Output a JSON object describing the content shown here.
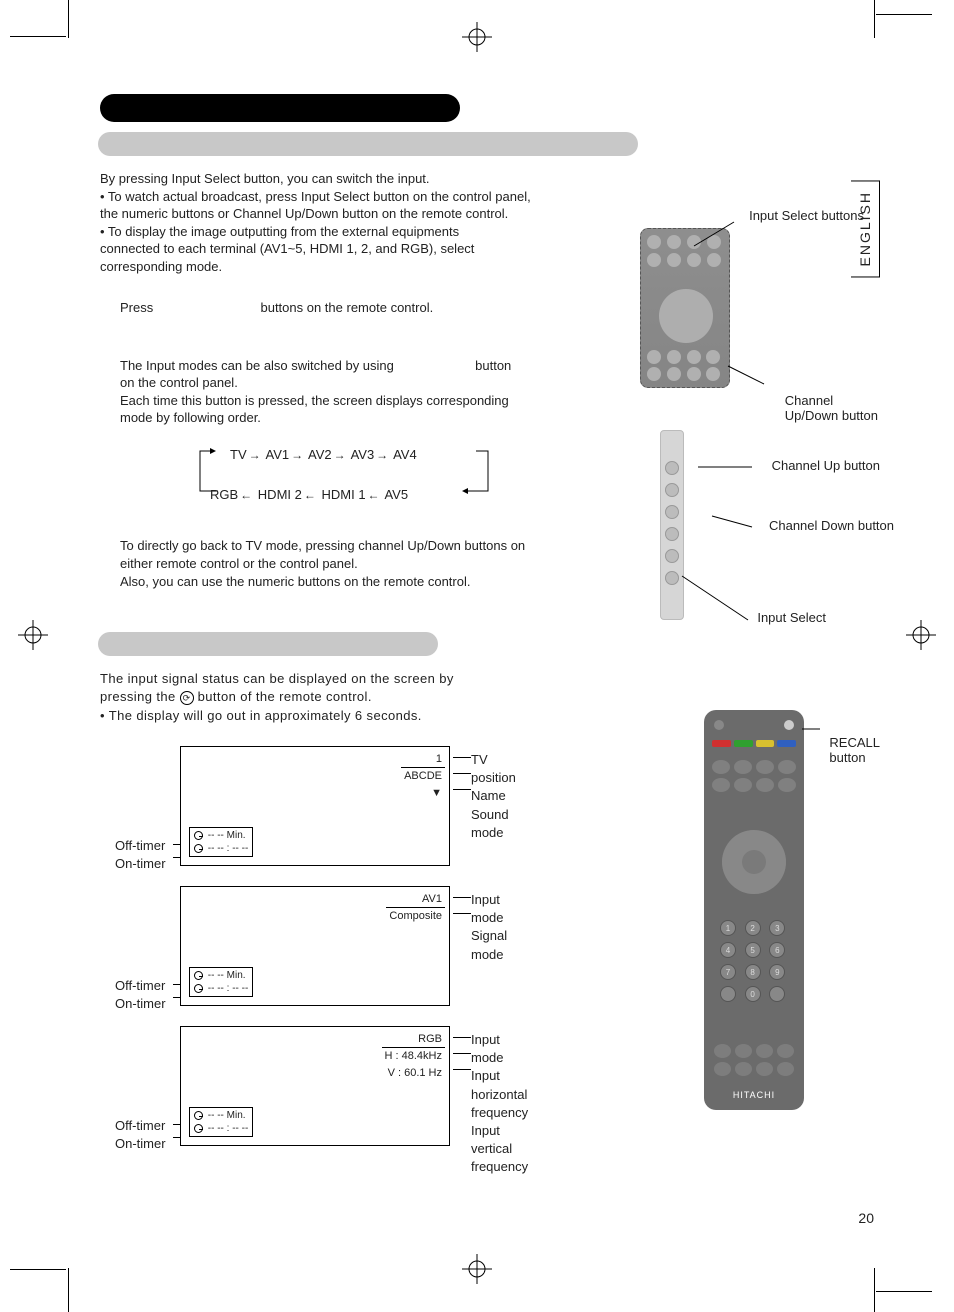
{
  "lang_tab": "ENGLISH",
  "page_number": "20",
  "intro": {
    "line1": "By pressing Input Select button, you can switch the input.",
    "bullet1a": "• To watch actual broadcast, press Input Select button on the control panel,",
    "bullet1b": "  the numeric buttons or Channel Up/Down button on the remote control.",
    "bullet2a": "• To display the image outputting from the external equipments",
    "bullet2b": "  connected to each terminal (AV1~5, HDMI 1, 2, and RGB), select",
    "bullet2c": "  corresponding mode."
  },
  "step1": {
    "press": "Press",
    "tail": "buttons on the remote control."
  },
  "step2": {
    "l1a": "The Input modes can be also switched by using",
    "l1b": "button",
    "l2": "on the control panel.",
    "l3": "Each time this button is pressed, the screen displays corresponding",
    "l4": "mode by following order."
  },
  "cycle": {
    "top": [
      "TV",
      "AV1",
      "AV2",
      "AV3",
      "AV4"
    ],
    "bottom": [
      "RGB",
      "HDMI 2",
      "HDMI 1",
      "AV5"
    ]
  },
  "note": {
    "l1": "To directly go back to TV mode, pressing channel Up/Down buttons on",
    "l2": "either remote control or the control panel.",
    "l3": "Also, you can use the numeric buttons on the remote control."
  },
  "section2": {
    "l1": "The input signal status can be displayed on the screen by",
    "l2a": "pressing the",
    "l2b": "button of the remote control.",
    "b1": "• The display will go out in approximately 6 seconds."
  },
  "displays": [
    {
      "tr": [
        "1",
        "ABCDE",
        "▼"
      ],
      "labels_r": [
        "TV position",
        "Name",
        "Sound mode"
      ],
      "timers": [
        "-- -- Min.",
        "-- -- : -- --"
      ]
    },
    {
      "tr": [
        "AV1",
        "Composite"
      ],
      "labels_r": [
        "Input mode",
        "Signal mode"
      ],
      "timers": [
        "-- -- Min.",
        "-- -- : -- --"
      ]
    },
    {
      "tr": [
        "RGB",
        "H :   48.4kHz",
        "V :   60.1  Hz"
      ],
      "labels_r": [
        "Input mode",
        "Input horizontal frequency",
        "Input vertical frequency"
      ],
      "timers": [
        "-- -- Min.",
        "-- -- : -- --"
      ]
    }
  ],
  "timer_labels": {
    "off": "Off-timer",
    "on": "On-timer"
  },
  "callouts": {
    "input_select_buttons": "Input Select buttons",
    "channel_updown": "Channel\nUp/Down button",
    "channel_up": "Channel Up button",
    "channel_down": "Channel Down button",
    "input_select": "Input Select",
    "recall": "RECALL\nbutton"
  },
  "remote_brand": "HITACHI",
  "colors": {
    "pill_black": "#000000",
    "pill_gray": "#c8c8c8",
    "device_gray": "#9a9a9a",
    "remote_gray": "#6b6b6b",
    "color_btns": [
      "#d03030",
      "#30a030",
      "#d8c030",
      "#3060c0"
    ]
  }
}
